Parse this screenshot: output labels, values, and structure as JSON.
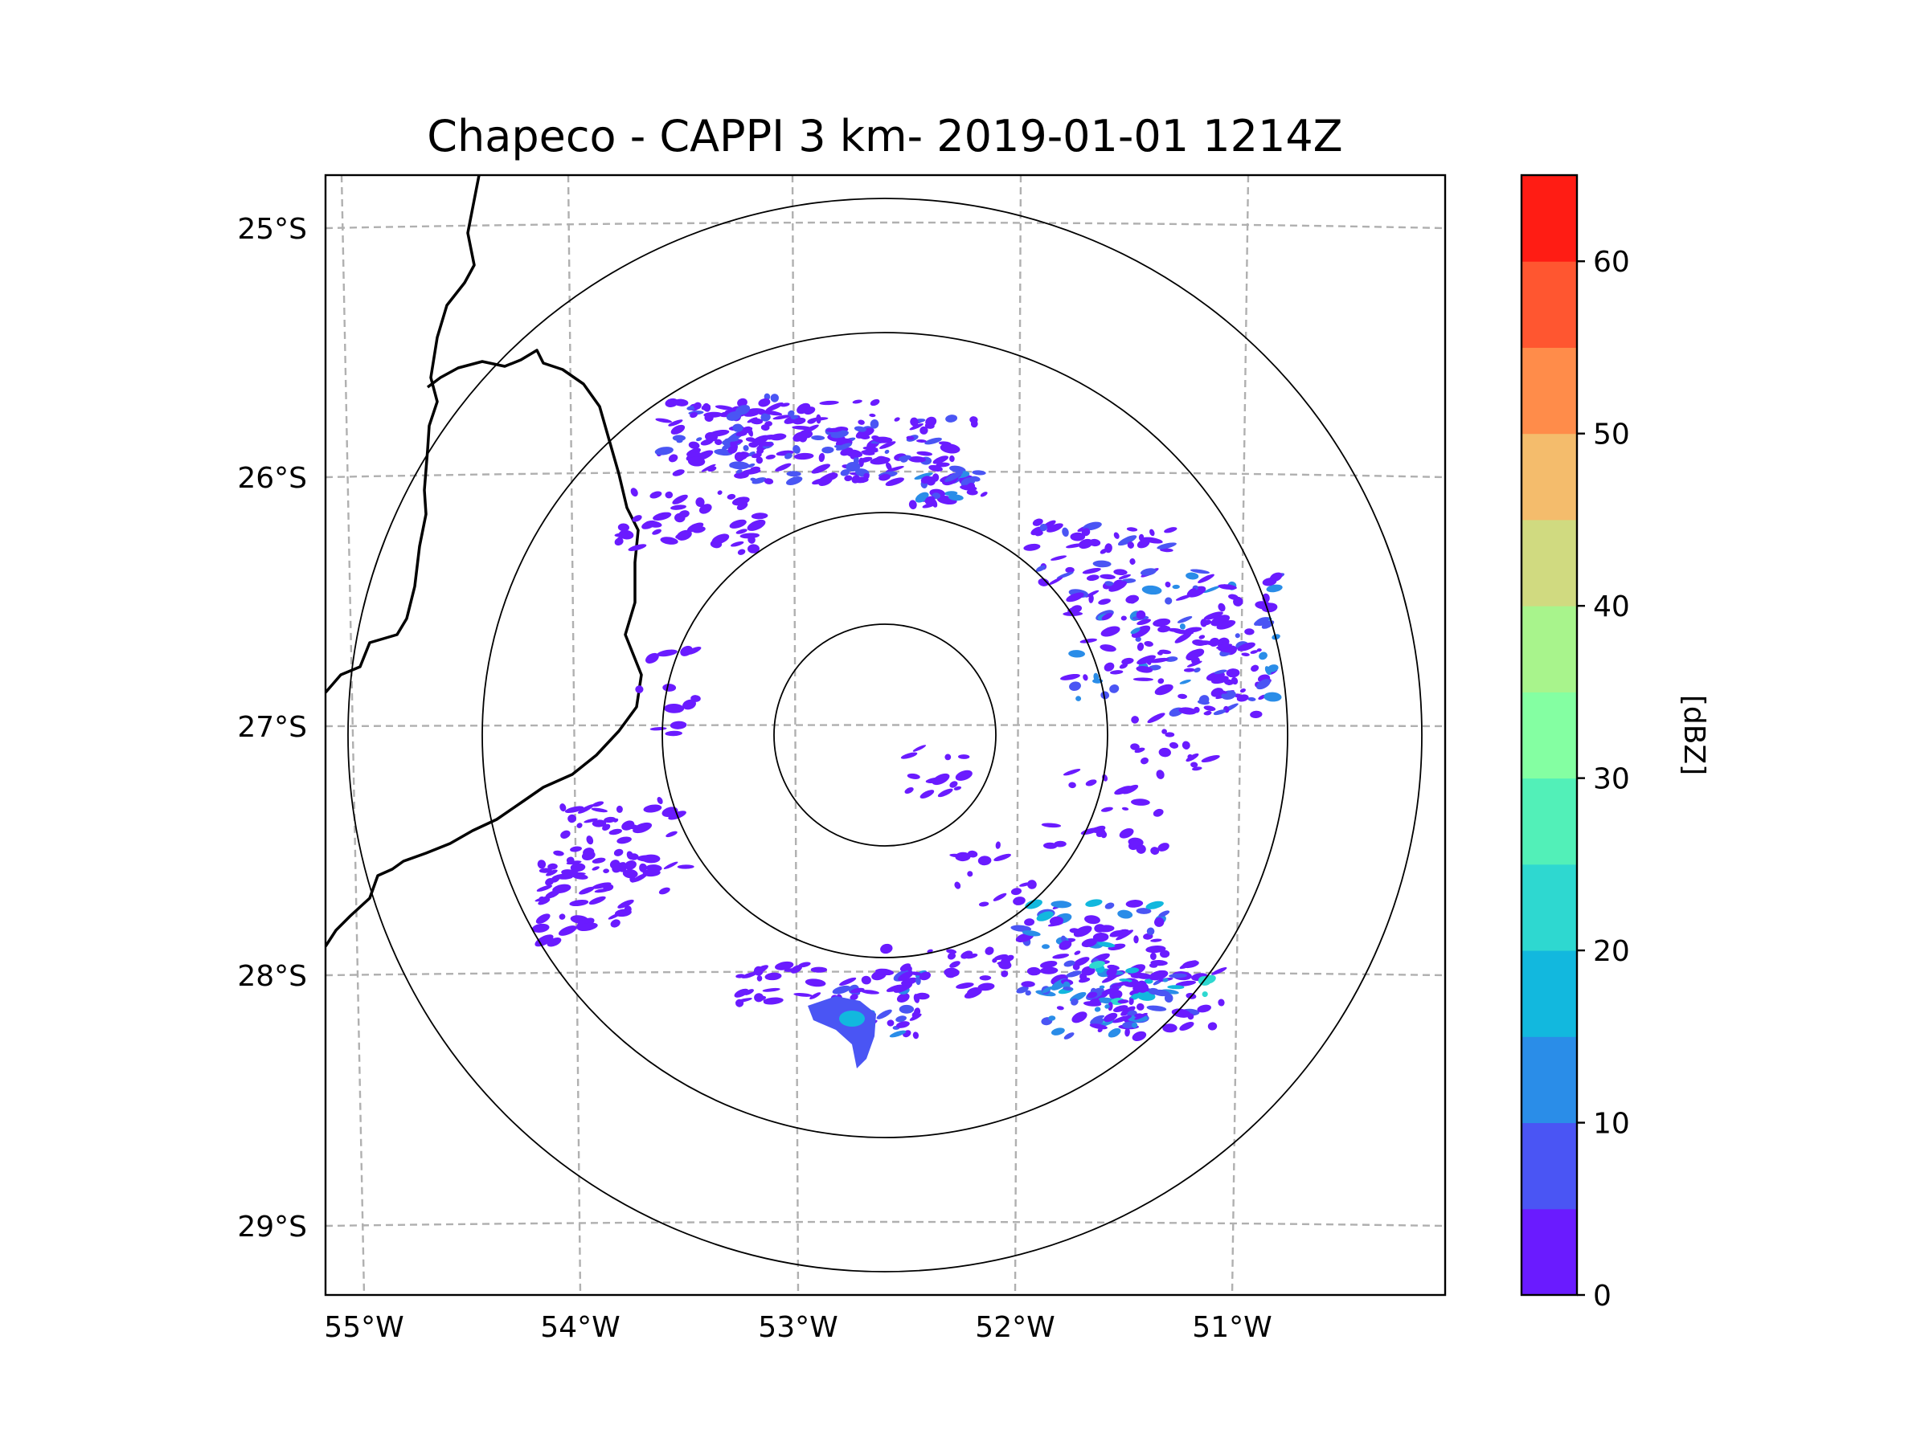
{
  "title": "Chapeco - CAPPI 3 km- 2019-01-01 1214Z",
  "lat_labels": [
    "25°S",
    "26°S",
    "27°S",
    "28°S",
    "29°S"
  ],
  "lon_labels": [
    "55°W",
    "54°W",
    "53°W",
    "52°W",
    "51°W"
  ],
  "colorbar": {
    "label": "[dBZ]",
    "tick_values": [
      0,
      10,
      20,
      30,
      40,
      50,
      60
    ],
    "tick_labels": [
      "0",
      "10",
      "20",
      "30",
      "40",
      "50",
      "60"
    ],
    "vmin": 0,
    "vmax": 65,
    "levels": [
      {
        "from": 0,
        "to": 5,
        "color": "#6a1bff"
      },
      {
        "from": 5,
        "to": 10,
        "color": "#4a55f4"
      },
      {
        "from": 10,
        "to": 15,
        "color": "#2a8de8"
      },
      {
        "from": 15,
        "to": 20,
        "color": "#12b8de"
      },
      {
        "from": 20,
        "to": 25,
        "color": "#2ed8d0"
      },
      {
        "from": 25,
        "to": 30,
        "color": "#52f0b8"
      },
      {
        "from": 30,
        "to": 35,
        "color": "#84ffa2"
      },
      {
        "from": 35,
        "to": 40,
        "color": "#a8f48c"
      },
      {
        "from": 40,
        "to": 45,
        "color": "#d0da80"
      },
      {
        "from": 45,
        "to": 50,
        "color": "#f4bc6c"
      },
      {
        "from": 50,
        "to": 55,
        "color": "#ff8c4a"
      },
      {
        "from": 55,
        "to": 60,
        "color": "#ff5630"
      },
      {
        "from": 60,
        "to": 65,
        "color": "#ff1c14"
      }
    ]
  },
  "range_rings": 4
}
